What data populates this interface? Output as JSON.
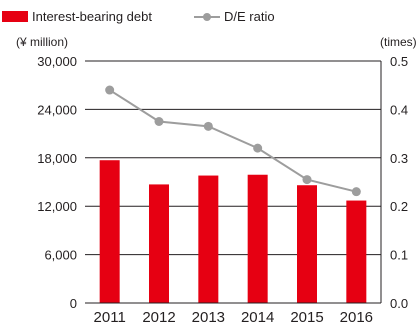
{
  "chart_data": {
    "type": "bar",
    "categories": [
      "2011",
      "2012",
      "2013",
      "2014",
      "2015",
      "2016"
    ],
    "series": [
      {
        "name": "Interest-bearing debt",
        "kind": "bar",
        "axis": "left",
        "color": "#e60012",
        "values": [
          17700,
          14700,
          15800,
          15900,
          14600,
          12700
        ]
      },
      {
        "name": "D/E ratio",
        "kind": "line",
        "axis": "right",
        "color": "#9d9d9d",
        "values": [
          0.44,
          0.375,
          0.365,
          0.32,
          0.255,
          0.23
        ]
      }
    ],
    "y_left": {
      "unit_label": "(¥ million)",
      "ticks": [
        "30,000",
        "24,000",
        "18,000",
        "12,000",
        "6,000",
        "0"
      ],
      "range": [
        0,
        30000
      ]
    },
    "y_right": {
      "unit_label": "(times)",
      "ticks": [
        "0.5",
        "0.4",
        "0.3",
        "0.2",
        "0.1",
        "0.0"
      ],
      "range": [
        0,
        0.5
      ]
    },
    "grid": true,
    "legend_position": "top-left"
  }
}
